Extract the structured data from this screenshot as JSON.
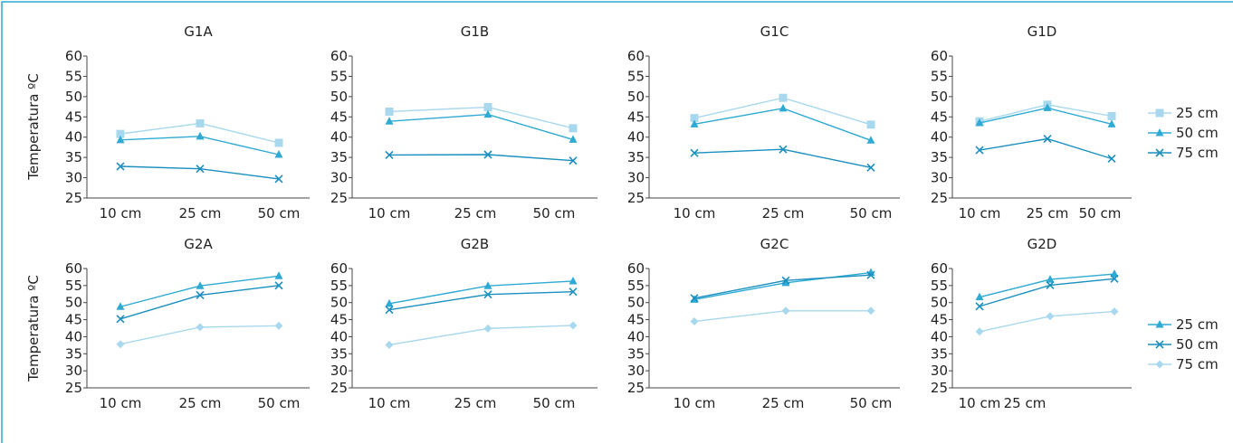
{
  "colors": {
    "light": "#a8d8ee",
    "mid": "#2eaad4",
    "dark": "#1a8fc0",
    "frame": "#2aa8d4",
    "axis": "#444444"
  },
  "y_axis_label": "Temperatura ºC",
  "legends": [
    {
      "entries": [
        {
          "label": "25 cm",
          "color": "#a8d8ee",
          "marker": "square"
        },
        {
          "label": "50 cm",
          "color": "#2eaad4",
          "marker": "triangle"
        },
        {
          "label": "75 cm",
          "color": "#1a8fc0",
          "marker": "x"
        }
      ]
    },
    {
      "entries": [
        {
          "label": "25 cm",
          "color": "#2eaad4",
          "marker": "triangle"
        },
        {
          "label": "50 cm",
          "color": "#1a8fc0",
          "marker": "x"
        },
        {
          "label": "75 cm",
          "color": "#a8d8ee",
          "marker": "diamond"
        }
      ]
    }
  ],
  "chart_data": [
    {
      "type": "line",
      "title": "G1A",
      "categories": [
        "10 cm",
        "25 cm",
        "50 cm"
      ],
      "ylim": [
        25,
        60
      ],
      "yticks": [
        25,
        30,
        35,
        40,
        45,
        50,
        55,
        60
      ],
      "series": [
        {
          "name": "25 cm",
          "marker": "square",
          "color": "#a8d8ee",
          "values": [
            40.8,
            43.4,
            38.6
          ]
        },
        {
          "name": "50 cm",
          "marker": "triangle",
          "color": "#2eaad4",
          "values": [
            39.3,
            40.2,
            35.7
          ]
        },
        {
          "name": "75 cm",
          "marker": "x",
          "color": "#1a8fc0",
          "values": [
            32.8,
            32.2,
            29.7
          ]
        }
      ]
    },
    {
      "type": "line",
      "title": "G1B",
      "categories": [
        "10 cm",
        "25 cm",
        "50 cm"
      ],
      "ylim": [
        25,
        60
      ],
      "yticks": [
        25,
        30,
        35,
        40,
        45,
        50,
        55,
        60
      ],
      "series": [
        {
          "name": "25 cm",
          "marker": "square",
          "color": "#a8d8ee",
          "values": [
            46.3,
            47.4,
            42.2
          ]
        },
        {
          "name": "50 cm",
          "marker": "triangle",
          "color": "#2eaad4",
          "values": [
            43.9,
            45.6,
            39.4
          ]
        },
        {
          "name": "75 cm",
          "marker": "x",
          "color": "#1a8fc0",
          "values": [
            35.6,
            35.7,
            34.2
          ]
        }
      ]
    },
    {
      "type": "line",
      "title": "G1C",
      "categories": [
        "10 cm",
        "25 cm",
        "50 cm"
      ],
      "ylim": [
        25,
        60
      ],
      "yticks": [
        25,
        30,
        35,
        40,
        45,
        50,
        55,
        60
      ],
      "series": [
        {
          "name": "25 cm",
          "marker": "square",
          "color": "#a8d8ee",
          "values": [
            44.7,
            49.7,
            43.1
          ]
        },
        {
          "name": "50 cm",
          "marker": "triangle",
          "color": "#2eaad4",
          "values": [
            43.2,
            47.1,
            39.2
          ]
        },
        {
          "name": "75 cm",
          "marker": "x",
          "color": "#1a8fc0",
          "values": [
            36.1,
            37.0,
            32.5
          ]
        }
      ]
    },
    {
      "type": "line",
      "title": "G1D",
      "categories": [
        "10 cm",
        "25 cm",
        "50 cm"
      ],
      "ylim": [
        25,
        60
      ],
      "yticks": [
        25,
        30,
        35,
        40,
        45,
        50,
        55,
        60
      ],
      "series": [
        {
          "name": "25 cm",
          "marker": "square",
          "color": "#a8d8ee",
          "values": [
            43.9,
            48.0,
            45.2
          ]
        },
        {
          "name": "50 cm",
          "marker": "triangle",
          "color": "#2eaad4",
          "values": [
            43.5,
            47.2,
            43.2
          ]
        },
        {
          "name": "75 cm",
          "marker": "x",
          "color": "#1a8fc0",
          "values": [
            36.8,
            39.6,
            34.7
          ]
        }
      ]
    },
    {
      "type": "line",
      "title": "G2A",
      "categories": [
        "10 cm",
        "25 cm",
        "50 cm"
      ],
      "ylim": [
        25,
        60
      ],
      "yticks": [
        25,
        30,
        35,
        40,
        45,
        50,
        55,
        60
      ],
      "series": [
        {
          "name": "25 cm",
          "marker": "triangle",
          "color": "#2eaad4",
          "values": [
            48.8,
            54.9,
            57.8
          ]
        },
        {
          "name": "50 cm",
          "marker": "x",
          "color": "#1a8fc0",
          "values": [
            45.2,
            52.2,
            55.0
          ]
        },
        {
          "name": "75 cm",
          "marker": "diamond",
          "color": "#a8d8ee",
          "values": [
            37.8,
            42.8,
            43.2
          ]
        }
      ]
    },
    {
      "type": "line",
      "title": "G2B",
      "categories": [
        "10 cm",
        "25 cm",
        "50 cm"
      ],
      "ylim": [
        25,
        60
      ],
      "yticks": [
        25,
        30,
        35,
        40,
        45,
        50,
        55,
        60
      ],
      "series": [
        {
          "name": "25 cm",
          "marker": "triangle",
          "color": "#2eaad4",
          "values": [
            49.7,
            54.9,
            56.3
          ]
        },
        {
          "name": "50 cm",
          "marker": "x",
          "color": "#1a8fc0",
          "values": [
            47.9,
            52.4,
            53.2
          ]
        },
        {
          "name": "75 cm",
          "marker": "diamond",
          "color": "#a8d8ee",
          "values": [
            37.6,
            42.4,
            43.3
          ]
        }
      ]
    },
    {
      "type": "line",
      "title": "G2C",
      "categories": [
        "10 cm",
        "25 cm",
        "50 cm"
      ],
      "ylim": [
        25,
        60
      ],
      "yticks": [
        25,
        30,
        35,
        40,
        45,
        50,
        55,
        60
      ],
      "series": [
        {
          "name": "25 cm",
          "marker": "triangle",
          "color": "#2eaad4",
          "values": [
            50.9,
            55.8,
            58.8
          ]
        },
        {
          "name": "50 cm",
          "marker": "x",
          "color": "#1a8fc0",
          "values": [
            51.3,
            56.5,
            58.1
          ]
        },
        {
          "name": "75 cm",
          "marker": "diamond",
          "color": "#a8d8ee",
          "values": [
            44.5,
            47.6,
            47.6
          ]
        }
      ]
    },
    {
      "type": "line",
      "title": "G2D",
      "categories": [
        "10 cm",
        "25 cm",
        ""
      ],
      "ylim": [
        25,
        60
      ],
      "yticks": [
        25,
        30,
        35,
        40,
        45,
        50,
        55,
        60
      ],
      "series": [
        {
          "name": "25 cm",
          "marker": "triangle",
          "color": "#2eaad4",
          "values": [
            51.6,
            56.8,
            58.4
          ]
        },
        {
          "name": "50 cm",
          "marker": "x",
          "color": "#1a8fc0",
          "values": [
            48.9,
            55.1,
            57.0
          ]
        },
        {
          "name": "75 cm",
          "marker": "diamond",
          "color": "#a8d8ee",
          "values": [
            41.5,
            46.0,
            47.4
          ]
        }
      ]
    }
  ]
}
